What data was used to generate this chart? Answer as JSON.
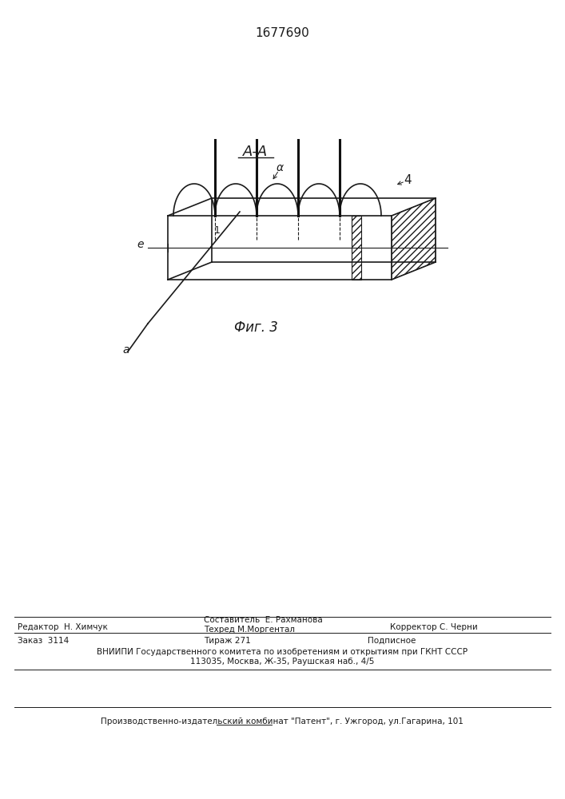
{
  "patent_number": "1677690",
  "fig_label": "Фиг. 3",
  "section_label": "А-А",
  "bg_color": "#ffffff",
  "line_color": "#1a1a1a",
  "editor_line": "Редактор  Н. Химчук",
  "composer_line1": "Составитель  Е. Рахманова",
  "composer_line2": "Техред М.Моргентал",
  "corrector_line": "Корректор С. Черни",
  "vniiipi_line1": "ВНИИПИ Государственного комитета по изобретениям и открытиям при ГКНТ СССР",
  "vniiipi_line2": "113035, Москва, Ж-35, Раушская наб., 4/5",
  "factory_line": "Производственно-издательский комбинат \"Патент\", г. Ужгород, ул.Гагарина, 101"
}
